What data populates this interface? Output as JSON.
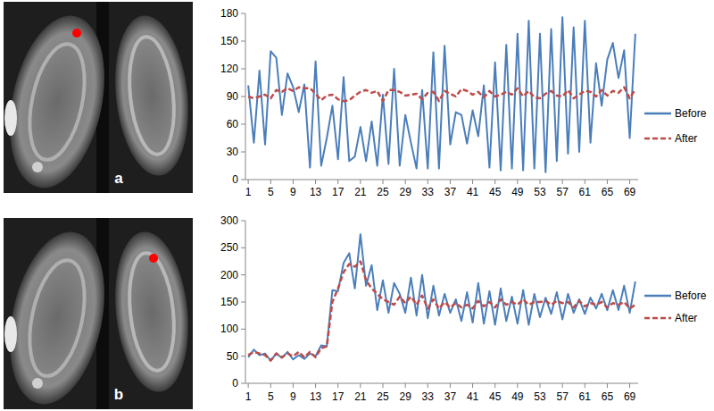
{
  "chart_data": [
    {
      "type": "line",
      "annotation": "a",
      "x": [
        1,
        2,
        3,
        4,
        5,
        6,
        7,
        8,
        9,
        10,
        11,
        12,
        13,
        14,
        15,
        16,
        17,
        18,
        19,
        20,
        21,
        22,
        23,
        24,
        25,
        26,
        27,
        28,
        29,
        30,
        31,
        32,
        33,
        34,
        35,
        36,
        37,
        38,
        39,
        40,
        41,
        42,
        43,
        44,
        45,
        46,
        47,
        48,
        49,
        50,
        51,
        52,
        53,
        54,
        55,
        56,
        57,
        58,
        59,
        60,
        61,
        62,
        63,
        64,
        65,
        66,
        67,
        68,
        69,
        70
      ],
      "xlim": [
        0.5,
        70.5
      ],
      "xticks": [
        1,
        5,
        9,
        13,
        17,
        21,
        25,
        29,
        33,
        37,
        41,
        45,
        49,
        53,
        57,
        61,
        65,
        69
      ],
      "ylim": [
        0,
        180
      ],
      "yticks": [
        0,
        30,
        60,
        90,
        120,
        150,
        180
      ],
      "grid": false,
      "legend": "right",
      "series": [
        {
          "name": "Before",
          "color": "#4a7ebb",
          "line_style": "solid",
          "values": [
            102,
            40,
            118,
            38,
            139,
            132,
            70,
            115,
            100,
            73,
            103,
            13,
            128,
            15,
            45,
            80,
            22,
            111,
            20,
            25,
            57,
            20,
            63,
            15,
            92,
            17,
            120,
            15,
            70,
            40,
            12,
            97,
            12,
            138,
            12,
            145,
            38,
            73,
            70,
            39,
            75,
            47,
            102,
            13,
            127,
            10,
            146,
            12,
            158,
            10,
            172,
            12,
            158,
            8,
            163,
            20,
            176,
            28,
            165,
            30,
            172,
            40,
            126,
            80,
            130,
            148,
            110,
            140,
            45,
            158
          ]
        },
        {
          "name": "After",
          "color": "#be4b48",
          "line_style": "dashed",
          "values": [
            90,
            88,
            90,
            92,
            88,
            97,
            95,
            99,
            96,
            100,
            99,
            99,
            93,
            86,
            91,
            92,
            87,
            85,
            86,
            91,
            95,
            97,
            94,
            96,
            85,
            97,
            97,
            95,
            91,
            92,
            93,
            87,
            94,
            95,
            85,
            96,
            93,
            90,
            98,
            96,
            92,
            95,
            89,
            96,
            90,
            92,
            95,
            92,
            99,
            90,
            96,
            89,
            88,
            93,
            96,
            91,
            90,
            97,
            88,
            92,
            96,
            95,
            90,
            97,
            91,
            96,
            94,
            100,
            88,
            98
          ]
        }
      ]
    },
    {
      "type": "line",
      "annotation": "b",
      "x": [
        1,
        2,
        3,
        4,
        5,
        6,
        7,
        8,
        9,
        10,
        11,
        12,
        13,
        14,
        15,
        16,
        17,
        18,
        19,
        20,
        21,
        22,
        23,
        24,
        25,
        26,
        27,
        28,
        29,
        30,
        31,
        32,
        33,
        34,
        35,
        36,
        37,
        38,
        39,
        40,
        41,
        42,
        43,
        44,
        45,
        46,
        47,
        48,
        49,
        50,
        51,
        52,
        53,
        54,
        55,
        56,
        57,
        58,
        59,
        60,
        61,
        62,
        63,
        64,
        65,
        66,
        67,
        68,
        69,
        70
      ],
      "xlim": [
        0.5,
        70.5
      ],
      "xticks": [
        1,
        5,
        9,
        13,
        17,
        21,
        25,
        29,
        33,
        37,
        41,
        45,
        49,
        53,
        57,
        61,
        65,
        69
      ],
      "ylim": [
        0,
        300
      ],
      "yticks": [
        0,
        50,
        100,
        150,
        200,
        250,
        300
      ],
      "grid": false,
      "legend": "right",
      "series": [
        {
          "name": "Before",
          "color": "#4a7ebb",
          "line_style": "solid",
          "values": [
            48,
            62,
            52,
            55,
            42,
            55,
            47,
            58,
            44,
            52,
            45,
            55,
            50,
            70,
            68,
            172,
            170,
            222,
            240,
            175,
            275,
            180,
            218,
            135,
            190,
            130,
            185,
            165,
            130,
            195,
            125,
            200,
            120,
            180,
            125,
            165,
            130,
            155,
            115,
            168,
            112,
            185,
            110,
            170,
            108,
            175,
            115,
            160,
            110,
            172,
            108,
            165,
            122,
            158,
            128,
            168,
            118,
            165,
            130,
            155,
            128,
            158,
            138,
            165,
            135,
            172,
            135,
            180,
            130,
            188
          ]
        },
        {
          "name": "After",
          "color": "#be4b48",
          "line_style": "dashed",
          "values": [
            52,
            58,
            55,
            52,
            42,
            55,
            48,
            55,
            50,
            58,
            48,
            58,
            48,
            65,
            68,
            150,
            175,
            205,
            220,
            215,
            225,
            190,
            175,
            165,
            155,
            150,
            145,
            160,
            148,
            160,
            145,
            162,
            138,
            155,
            138,
            150,
            140,
            148,
            140,
            145,
            138,
            152,
            142,
            150,
            140,
            155,
            145,
            150,
            145,
            155,
            145,
            150,
            150,
            152,
            145,
            152,
            148,
            150,
            140,
            152,
            142,
            148,
            145,
            150,
            140,
            148,
            145,
            150,
            138,
            145
          ]
        }
      ]
    }
  ]
}
